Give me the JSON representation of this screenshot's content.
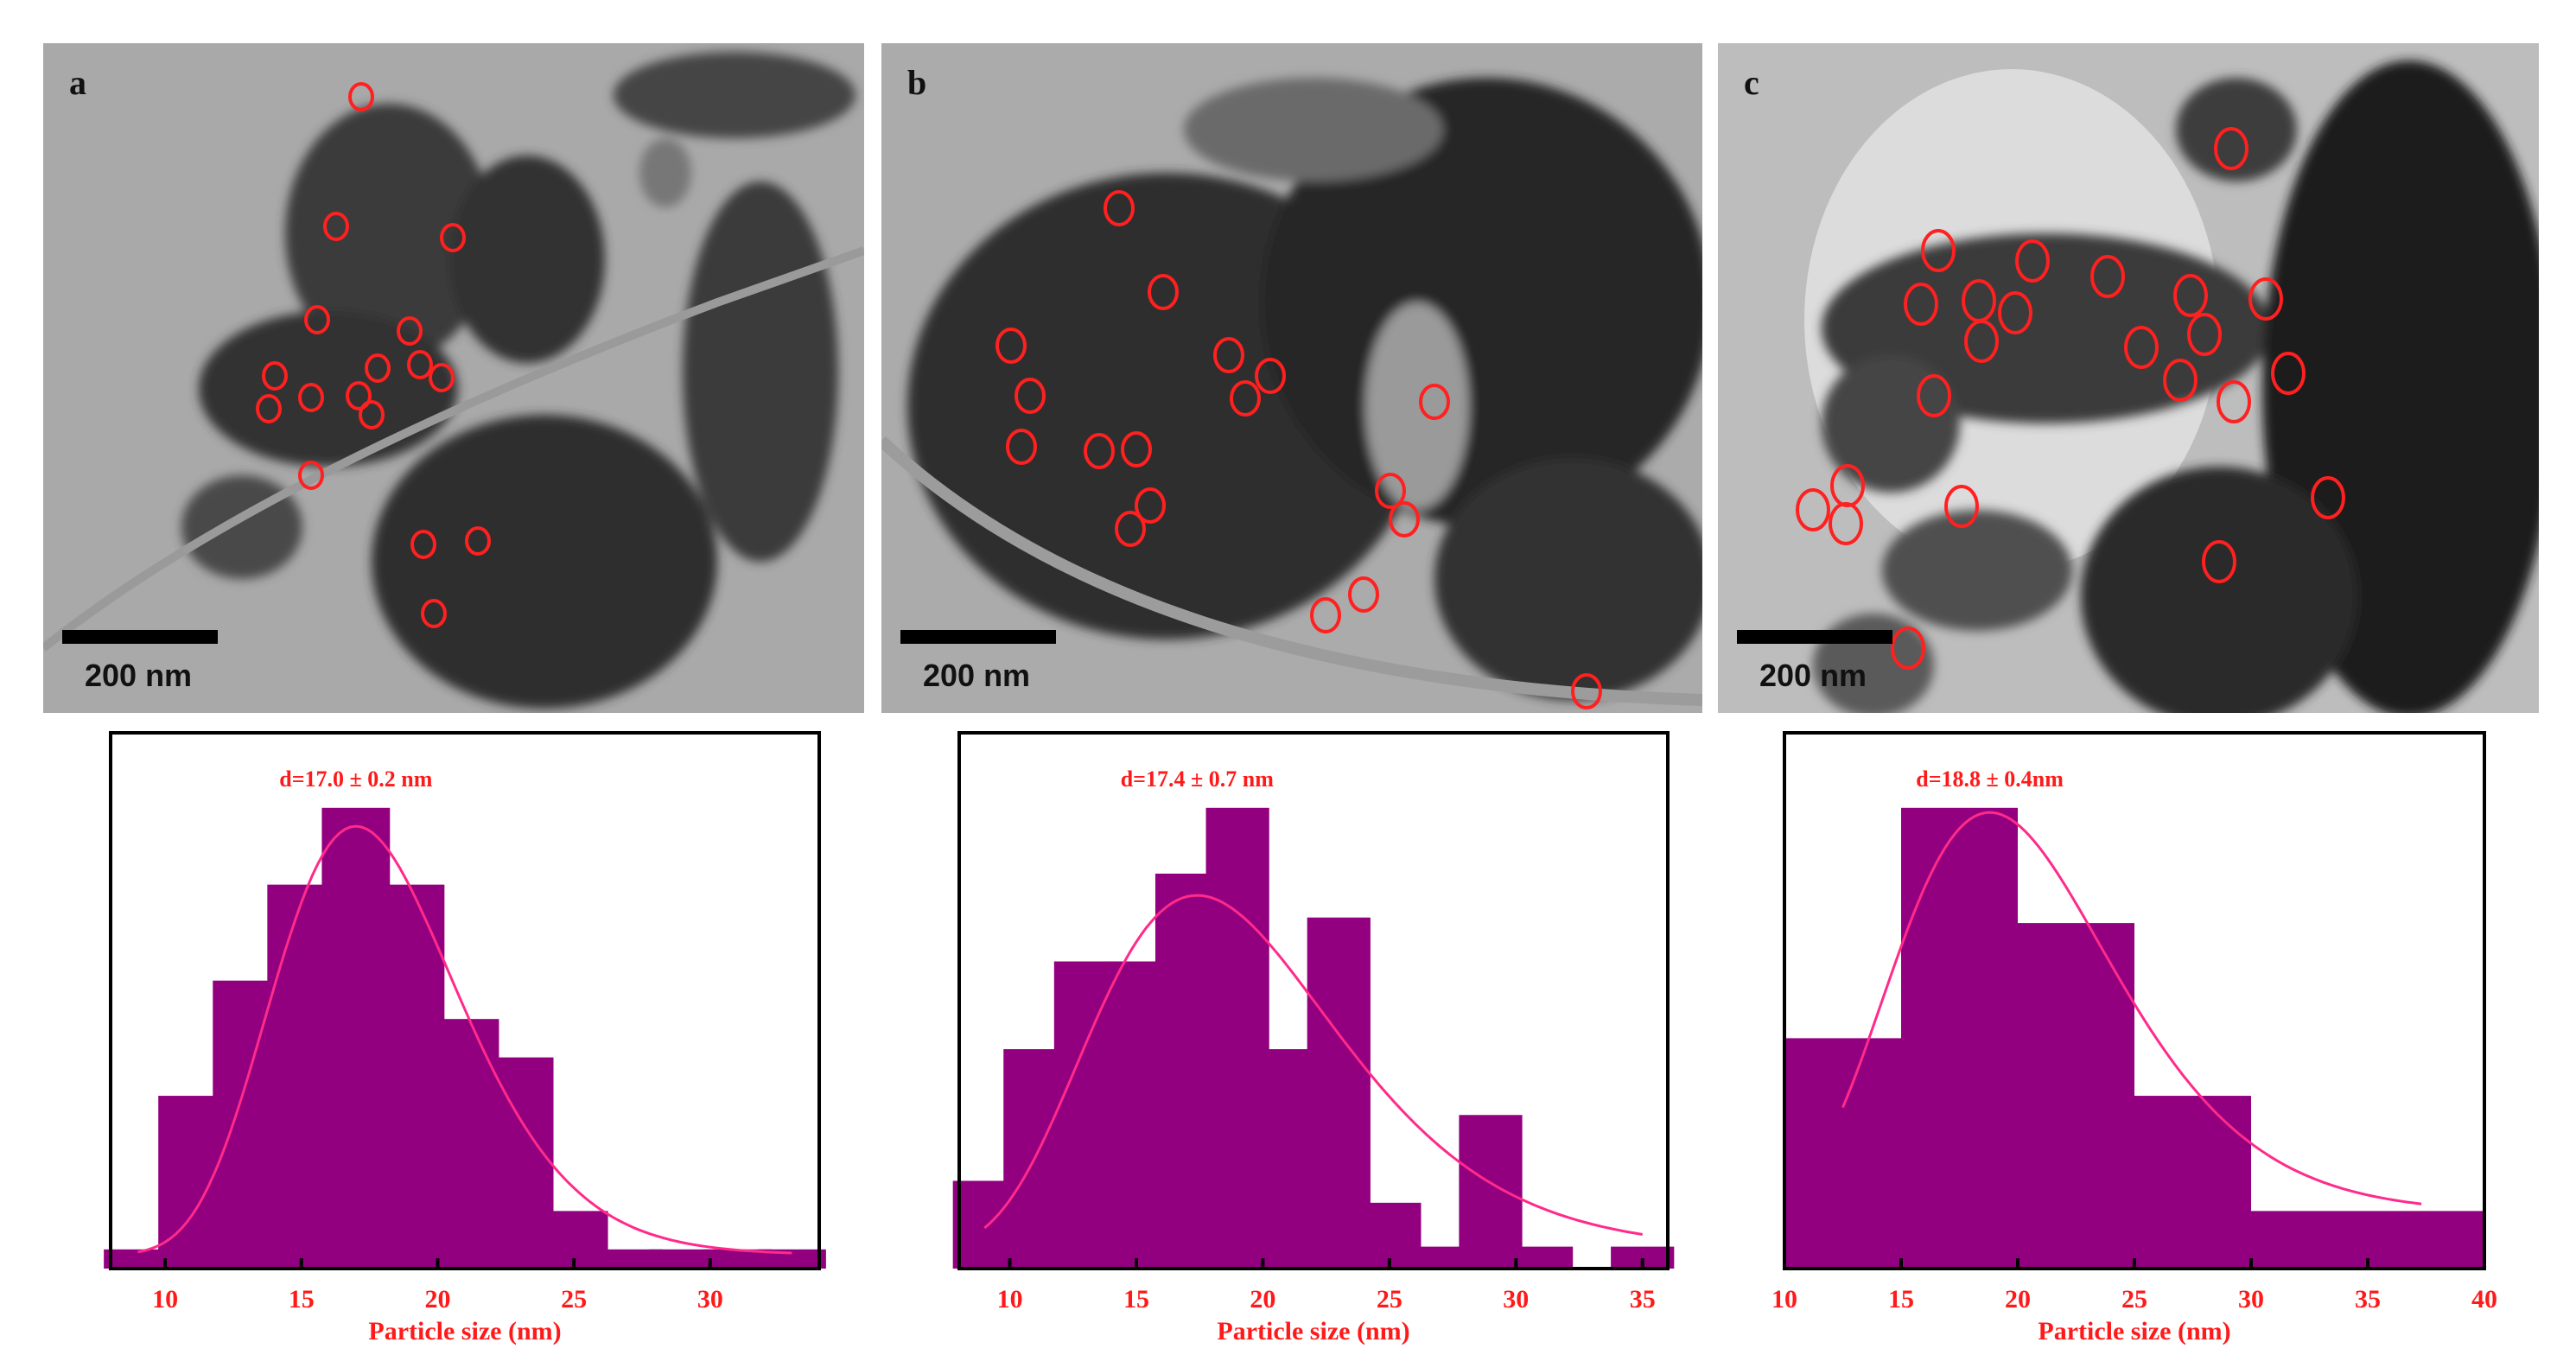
{
  "panels": [
    {
      "label": "a",
      "scale_bar": "200 nm"
    },
    {
      "label": "b",
      "scale_bar": "200 nm"
    },
    {
      "label": "c",
      "scale_bar": "200 nm"
    }
  ],
  "colors": {
    "bar": "#93007f",
    "fit_curve": "#ff2a8a",
    "text": "#ff1a1a",
    "circle_marker": "#ff2020"
  },
  "chart_data": [
    {
      "type": "bar",
      "title": "",
      "annotation": "d=17.0 ± 0.2 nm",
      "xlabel": "Particle size (nm)",
      "ylabel": "",
      "xlim": [
        8,
        34
      ],
      "xticks": [
        10,
        15,
        20,
        25,
        30
      ],
      "categories": [
        9,
        11,
        13,
        15,
        17,
        19,
        21,
        23,
        25,
        27,
        29,
        31,
        33
      ],
      "values": [
        1,
        9,
        15,
        20,
        24,
        20,
        13,
        11,
        3,
        1,
        1,
        1,
        1
      ],
      "fit": {
        "type": "lognormal",
        "peak": 17.0
      },
      "grid": false
    },
    {
      "type": "bar",
      "title": "",
      "annotation": "d=17.4 ± 0.7 nm",
      "xlabel": "Particle size (nm)",
      "ylabel": "",
      "xlim": [
        8,
        36
      ],
      "xticks": [
        10,
        15,
        20,
        25,
        30,
        35
      ],
      "categories": [
        9,
        11,
        13,
        15,
        17,
        19,
        21,
        23,
        25,
        27,
        29,
        31,
        35
      ],
      "values": [
        4,
        10,
        14,
        14,
        18,
        21,
        10,
        16,
        3,
        1,
        7,
        1,
        1
      ],
      "fit": {
        "type": "lognormal",
        "peak": 17.4
      },
      "grid": false
    },
    {
      "type": "bar",
      "title": "",
      "annotation": "d=18.8 ± 0.4nm",
      "xlabel": "Particle size (nm)",
      "ylabel": "",
      "xlim": [
        10,
        40
      ],
      "xticks": [
        10,
        15,
        20,
        25,
        30,
        35,
        40
      ],
      "categories": [
        12.5,
        17.5,
        22.5,
        27.5,
        32.5,
        37.5
      ],
      "values": [
        4,
        8,
        6,
        3,
        1,
        1
      ],
      "fit": {
        "type": "lognormal",
        "peak": 18.8
      },
      "grid": false
    }
  ]
}
